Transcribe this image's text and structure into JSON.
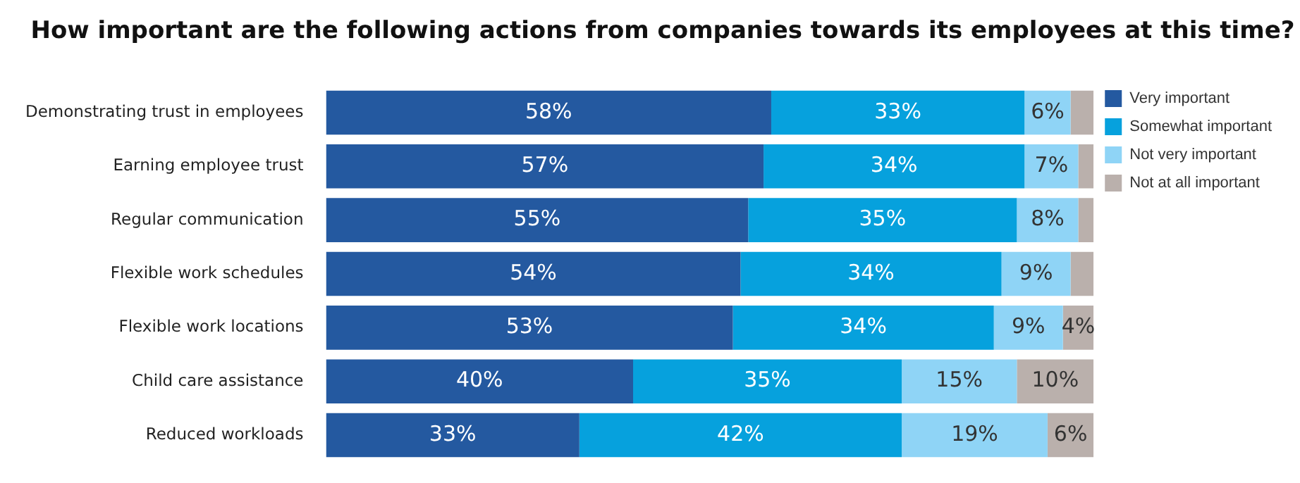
{
  "chart_data": {
    "type": "bar",
    "orientation": "horizontal",
    "stacked": true,
    "title": "How important are the following actions from companies towards its employees at this time?",
    "categories": [
      "Demonstrating trust in employees",
      "Earning employee trust",
      "Regular communication",
      "Flexible work schedules",
      "Flexible work locations",
      "Child care assistance",
      "Reduced workloads"
    ],
    "series": [
      {
        "name": "Very important",
        "color": "#2459a0",
        "values": [
          58,
          57,
          55,
          54,
          53,
          40,
          33
        ],
        "value_labels": [
          "58%",
          "57%",
          "55%",
          "54%",
          "53%",
          "40%",
          "33%"
        ]
      },
      {
        "name": "Somewhat important",
        "color": "#06a1dd",
        "values": [
          33,
          34,
          35,
          34,
          34,
          35,
          42
        ],
        "value_labels": [
          "33%",
          "34%",
          "35%",
          "34%",
          "34%",
          "35%",
          "42%"
        ]
      },
      {
        "name": "Not very important",
        "color": "#8fd4f6",
        "values": [
          6,
          7,
          8,
          9,
          9,
          15,
          19
        ],
        "value_labels": [
          "6%",
          "7%",
          "8%",
          "9%",
          "9%",
          "15%",
          "19%"
        ]
      },
      {
        "name": "Not at all important",
        "color": "#bab0ac",
        "values": [
          3,
          2,
          2,
          3,
          4,
          10,
          6
        ],
        "value_labels": [
          null,
          null,
          null,
          null,
          "4%",
          "10%",
          "6%"
        ]
      }
    ],
    "xlim": [
      0,
      100
    ],
    "tick_labels": "y",
    "grid": false,
    "legend": "top right"
  }
}
